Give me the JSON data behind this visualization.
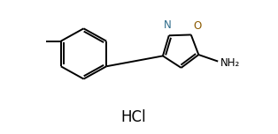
{
  "background_color": "#ffffff",
  "n_color": "#2e6b8a",
  "o_color": "#8B5A00",
  "hcl_text": "HCl",
  "nh2_text": "NH₂",
  "n_label": "N",
  "o_label": "O",
  "figwidth": 3.14,
  "figheight": 1.52,
  "dpi": 100,
  "lw": 1.4,
  "fontsize_label": 8.5,
  "fontsize_hcl": 12,
  "fontsize_nh2": 8.5,
  "xlim": [
    0,
    10
  ],
  "ylim": [
    0,
    5
  ]
}
